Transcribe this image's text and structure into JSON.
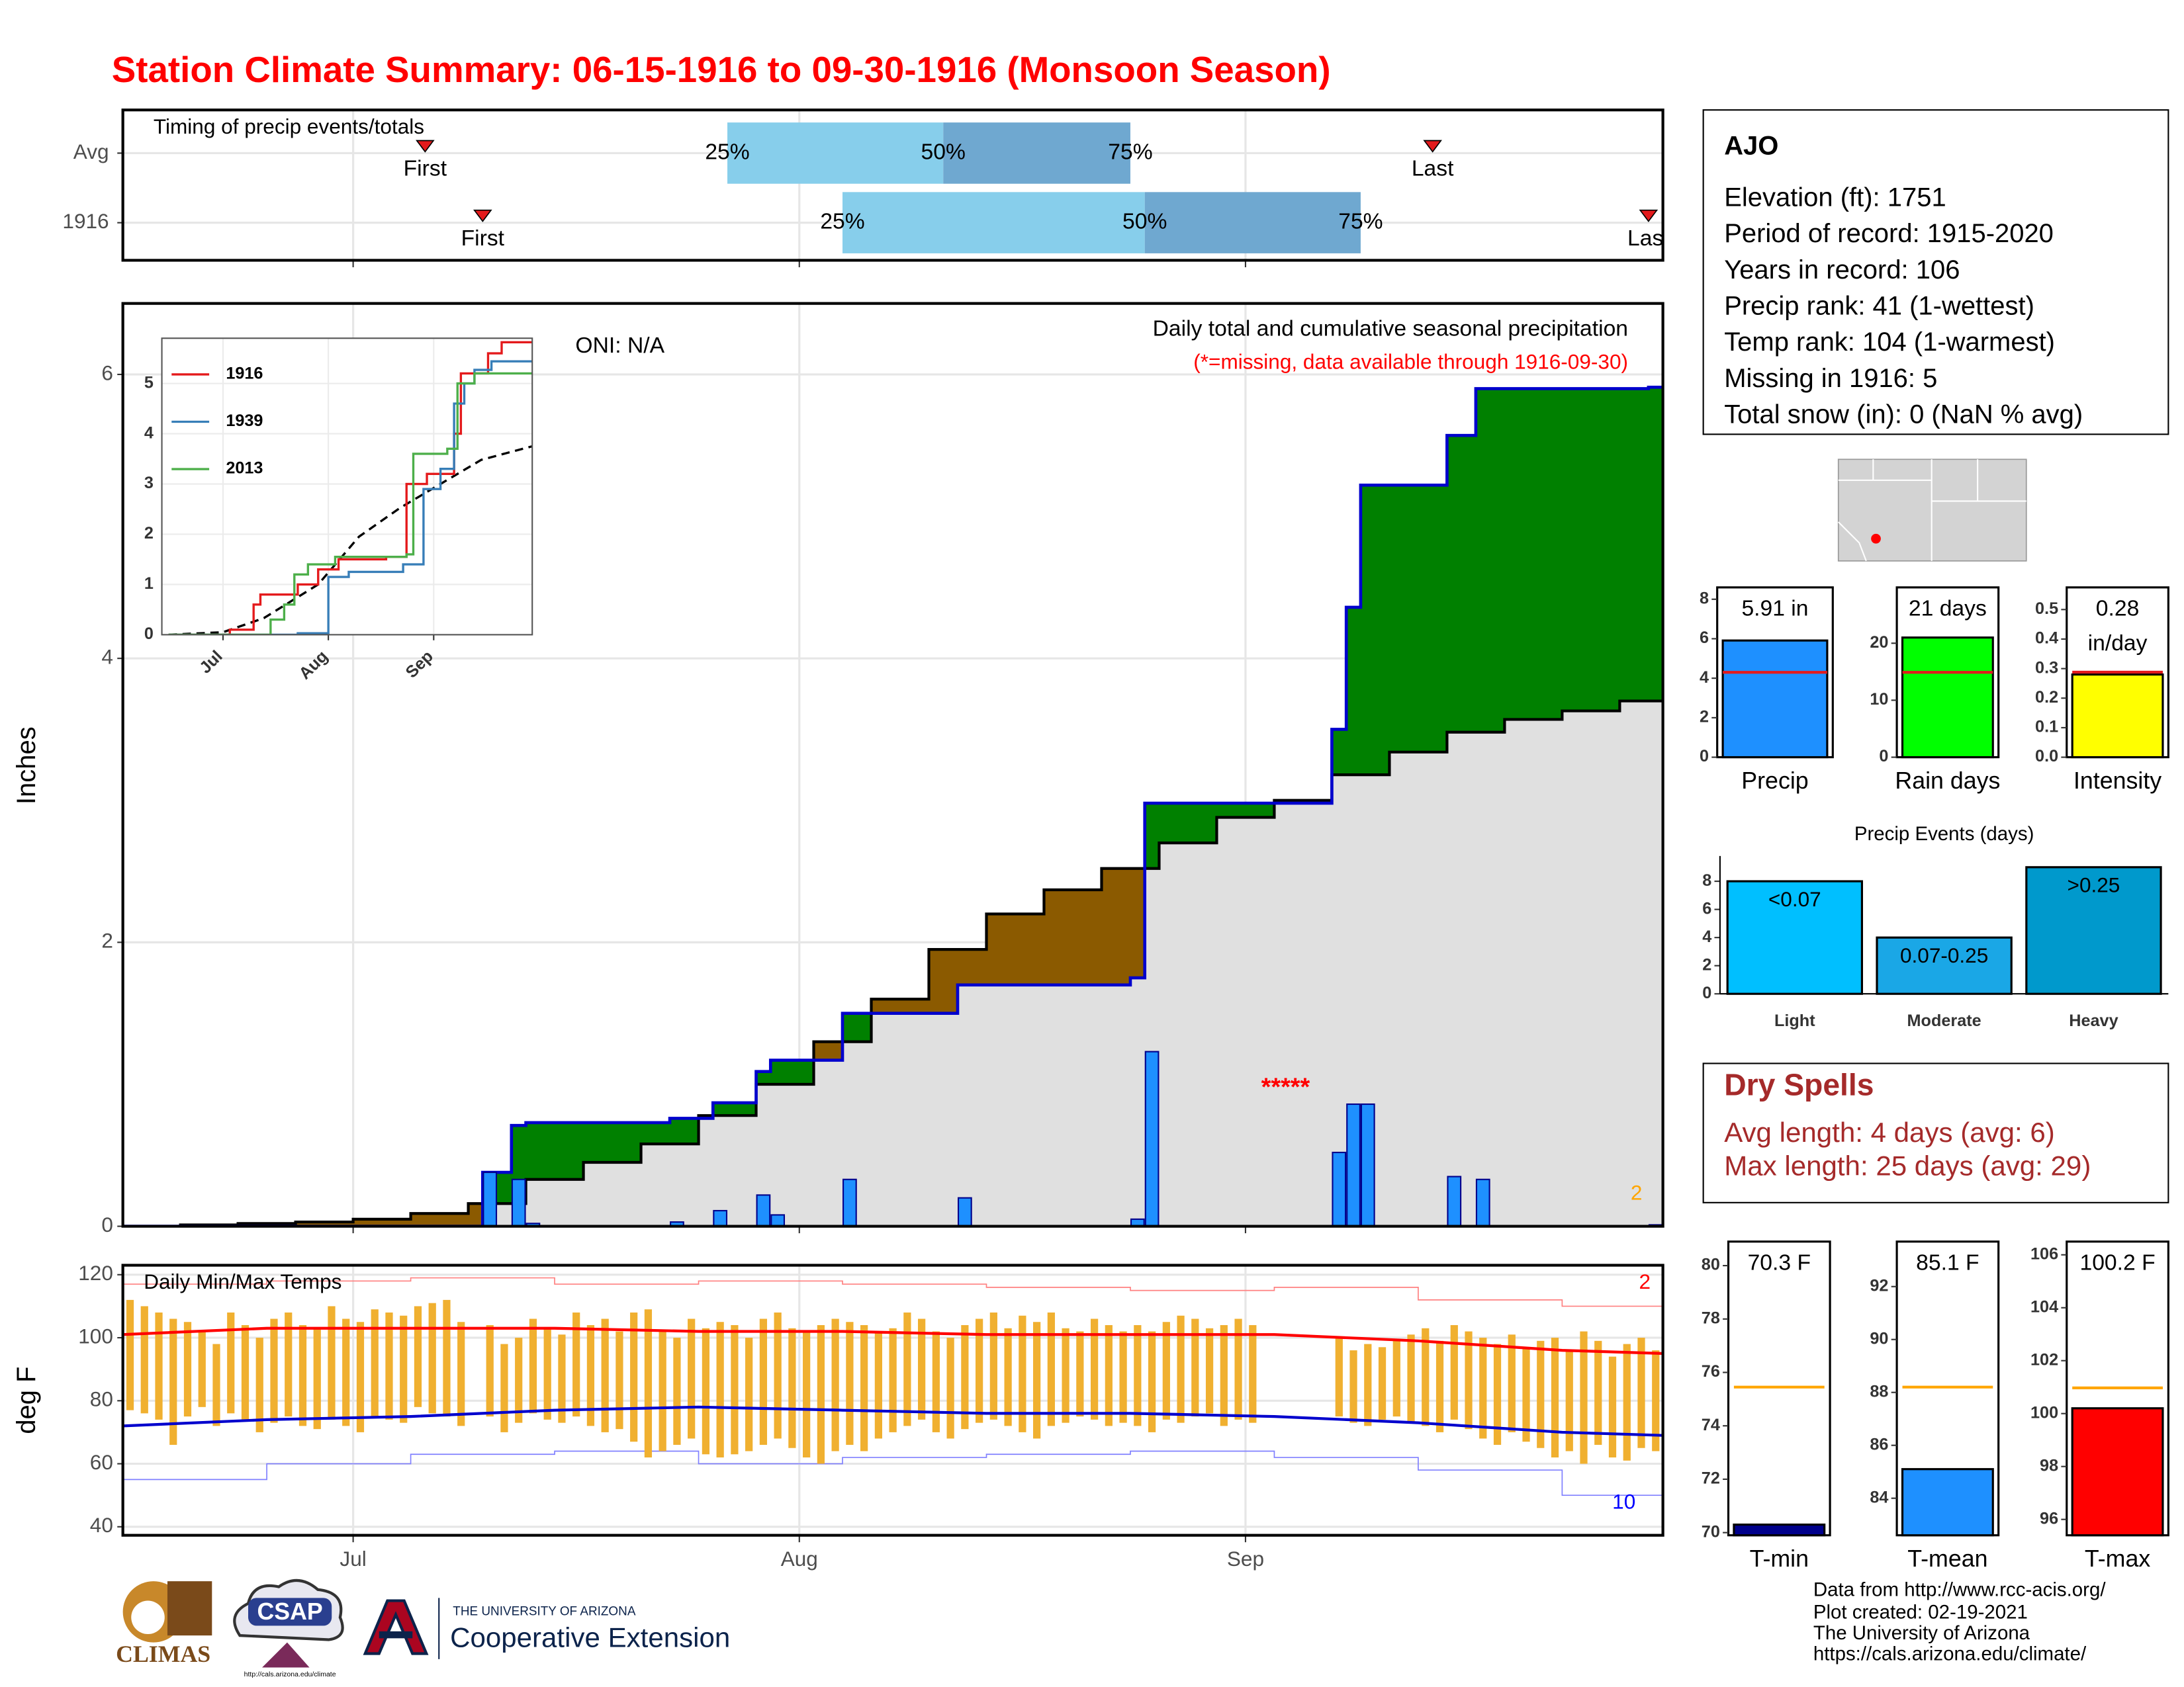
{
  "title": "Station Climate Summary: 06-15-1916 to 09-30-1916 (Monsoon Season)",
  "chart_data": [
    {
      "type": "timing",
      "title": "Timing of precip events/totals",
      "categories": [
        "Avg",
        "1916"
      ],
      "xlim": [
        0,
        107
      ],
      "rows": [
        {
          "first": 21,
          "q25": 42,
          "q50": 57,
          "q75": 70,
          "last": 91
        },
        {
          "first": 25,
          "q25": 50,
          "q50": 71,
          "q75": 86,
          "last": 106
        }
      ],
      "labels": {
        "first": "First",
        "last": "Last",
        "q25": "25%",
        "q50": "50%",
        "q75": "75%"
      },
      "colors": [
        "#87ceeb",
        "#6fa8d0"
      ],
      "marker_color": "#e31a1c"
    },
    {
      "type": "cumulative_precip",
      "title": "Daily total and cumulative seasonal precipitation",
      "subtitle": "(*=missing, data available through 1916-09-30)",
      "annotation": "ONI: N/A",
      "missing_label": "*****",
      "note": "2",
      "note_color": "#ffa500",
      "ylabel": "Inches",
      "xlim": [
        0,
        107
      ],
      "ylim": [
        0,
        6.5
      ],
      "yticks": [
        0,
        2,
        4,
        6
      ],
      "grid": true,
      "above_color": "#008000",
      "below_color": "#8b5a00",
      "base_color": "#e0e0e0",
      "series": [
        {
          "name": "1916",
          "color": "#1e90ff",
          "line_color": "#0000cd",
          "x": [
            25,
            27,
            28,
            38,
            41,
            44,
            45,
            50,
            58,
            70,
            71,
            84,
            85,
            86,
            92,
            94,
            106
          ],
          "values": [
            0.38,
            0.33,
            0.02,
            0.03,
            0.11,
            0.22,
            0.08,
            0.33,
            0.2,
            0.05,
            1.23,
            0.52,
            0.86,
            0.86,
            0.35,
            0.33,
            0.01
          ]
        },
        {
          "color": "#000000",
          "x": [
            0,
            4,
            8,
            12,
            16,
            20,
            24,
            28,
            32,
            36,
            40,
            44,
            48,
            52,
            56,
            60,
            64,
            68,
            72,
            76,
            80,
            84,
            88,
            92,
            96,
            100,
            104,
            107
          ],
          "values": [
            0,
            0.01,
            0.02,
            0.03,
            0.05,
            0.09,
            0.16,
            0.33,
            0.45,
            0.58,
            0.78,
            1.0,
            1.3,
            1.6,
            1.95,
            2.2,
            2.37,
            2.52,
            2.7,
            2.88,
            3.0,
            3.18,
            3.34,
            3.48,
            3.57,
            3.63,
            3.7,
            3.75
          ]
        }
      ]
    },
    {
      "type": "inset_cumulative",
      "xlim": [
        -2,
        107
      ],
      "ylim": [
        0,
        5.9
      ],
      "yticks": [
        0,
        1,
        2,
        3,
        4,
        5
      ],
      "series": [
        {
          "name": "1916",
          "color": "#e41a1c",
          "x": [
            0,
            18,
            25,
            27,
            38,
            44,
            50,
            64,
            70,
            76,
            84,
            86,
            94,
            98,
            107
          ],
          "values": [
            0,
            0.1,
            0.6,
            0.8,
            1.0,
            1.3,
            1.5,
            1.55,
            3.0,
            3.2,
            4.0,
            5.2,
            5.6,
            5.82,
            5.82
          ]
        },
        {
          "name": "1939",
          "color": "#377eb8",
          "x": [
            0,
            38,
            47,
            53,
            69,
            75,
            80,
            84,
            87,
            90,
            95,
            107
          ],
          "values": [
            0,
            0.03,
            1.15,
            1.25,
            1.4,
            2.9,
            3.3,
            4.6,
            5.0,
            5.27,
            5.44,
            5.44
          ]
        },
        {
          "name": "2013",
          "color": "#4daf4a",
          "x": [
            0,
            30,
            34,
            37,
            41,
            49,
            70,
            72,
            82,
            85,
            90,
            107
          ],
          "values": [
            0,
            0.3,
            0.6,
            1.2,
            1.4,
            1.55,
            1.6,
            3.6,
            3.7,
            5.0,
            5.2,
            5.2
          ]
        }
      ],
      "average": {
        "color": "#000000",
        "x": [
          0,
          16,
          28,
          44,
          56,
          68,
          80,
          92,
          107
        ],
        "values": [
          0,
          0.05,
          0.33,
          1.0,
          1.95,
          2.52,
          3.0,
          3.48,
          3.75
        ]
      }
    },
    {
      "type": "temperature",
      "title": "Daily Min/Max Temps",
      "ylabel": "deg F",
      "xlim": [
        0,
        107
      ],
      "xticks": [
        {
          "value": 16,
          "label": "Jul"
        },
        {
          "value": 47,
          "label": "Aug"
        },
        {
          "value": 78,
          "label": "Sep"
        }
      ],
      "ylim": [
        37.3,
        123
      ],
      "yticks": [
        40,
        60,
        80,
        100,
        120
      ],
      "grid": true,
      "bar_color": "#f0b030",
      "tmax": [
        112,
        110,
        108,
        106,
        105,
        102,
        98,
        108,
        104,
        100,
        106,
        108,
        104,
        103,
        110,
        106,
        105,
        109,
        108,
        107,
        110,
        111,
        112,
        105,
        null,
        104,
        98,
        100,
        106,
        103,
        101,
        108,
        104,
        106,
        102,
        108,
        109,
        102,
        100,
        106,
        103,
        105,
        104,
        100,
        106,
        108,
        103,
        102,
        104,
        106,
        105,
        104,
        102,
        103,
        108,
        106,
        102,
        100,
        104,
        106,
        108,
        103,
        107,
        105,
        108,
        103,
        102,
        106,
        104,
        102,
        104,
        102,
        105,
        107,
        106,
        103,
        104,
        106,
        104,
        null,
        null,
        null,
        null,
        null,
        100,
        96,
        98,
        97,
        99,
        101,
        103,
        99,
        104,
        102,
        100,
        98,
        101,
        97,
        99,
        100,
        96,
        102,
        99,
        94,
        98,
        100,
        96
      ],
      "tmin": [
        77,
        76,
        74,
        66,
        75,
        78,
        72,
        76,
        74,
        70,
        73,
        75,
        72,
        71,
        74,
        72,
        70,
        75,
        74,
        73,
        78,
        76,
        75,
        72,
        null,
        75,
        70,
        73,
        76,
        74,
        73,
        75,
        72,
        70,
        71,
        67,
        62,
        64,
        66,
        68,
        63,
        62,
        63,
        64,
        66,
        68,
        65,
        62,
        60,
        64,
        66,
        64,
        68,
        70,
        72,
        74,
        70,
        68,
        71,
        73,
        74,
        72,
        70,
        68,
        72,
        73,
        75,
        74,
        72,
        73,
        72,
        70,
        74,
        73,
        75,
        76,
        72,
        74,
        73,
        null,
        null,
        null,
        null,
        null,
        75,
        73,
        72,
        74,
        75,
        73,
        72,
        70,
        74,
        71,
        68,
        66,
        70,
        67,
        65,
        62,
        64,
        60,
        66,
        62,
        61,
        65,
        64
      ],
      "avg_max": {
        "color": "#ff0000",
        "x": [
          0,
          10,
          20,
          30,
          40,
          50,
          60,
          70,
          80,
          90,
          100,
          107
        ],
        "values": [
          101,
          103,
          103,
          103,
          102,
          102,
          101,
          101,
          101,
          99,
          96,
          95
        ]
      },
      "avg_min": {
        "color": "#0000cd",
        "x": [
          0,
          10,
          20,
          30,
          40,
          50,
          60,
          70,
          80,
          90,
          100,
          107
        ],
        "values": [
          72,
          74,
          75,
          77,
          78,
          77,
          76,
          76,
          75,
          73,
          70,
          69
        ]
      },
      "record_max": {
        "color": "#ff8080",
        "x": [
          0,
          10,
          20,
          30,
          40,
          50,
          60,
          70,
          80,
          90,
          100,
          107
        ],
        "values": [
          117,
          118,
          119,
          117,
          118,
          117,
          116,
          115,
          116,
          112,
          110,
          108
        ]
      },
      "record_min": {
        "color": "#8080ff",
        "x": [
          0,
          10,
          20,
          30,
          40,
          50,
          60,
          70,
          80,
          90,
          100,
          107
        ],
        "values": [
          55,
          60,
          63,
          64,
          60,
          62,
          63,
          64,
          62,
          58,
          50,
          52
        ]
      },
      "annotations": [
        {
          "text": "2",
          "color": "#ff0000"
        },
        {
          "text": "10",
          "color": "#0000ff"
        }
      ]
    },
    {
      "type": "summary_bar",
      "category": "Precip",
      "value": 5.91,
      "value_label": [
        "5.91 in"
      ],
      "average": 4.3,
      "color": "#1e90ff",
      "avg_color": "#e31a1c",
      "ylim": [
        0,
        8.6
      ],
      "yticks": [
        0,
        2,
        4,
        6,
        8
      ]
    },
    {
      "type": "summary_bar",
      "category": "Rain days",
      "value": 21,
      "value_label": [
        "21 days"
      ],
      "average": 14.9,
      "color": "#00ff00",
      "avg_color": "#e31a1c",
      "ylim": [
        0,
        29.8
      ],
      "yticks": [
        0,
        10,
        20
      ]
    },
    {
      "type": "summary_bar",
      "category": "Intensity",
      "value": 0.28,
      "value_label": [
        "0.28",
        "in/day"
      ],
      "average": 0.288,
      "color": "#ffff00",
      "avg_color": "#e31a1c",
      "ylim": [
        0,
        0.575
      ],
      "yticks": [
        {
          "value": 0,
          "label": "0.0"
        },
        0.1,
        0.2,
        0.3,
        0.4,
        0.5
      ]
    },
    {
      "type": "events_bar",
      "title": "Precip Events (days)",
      "categories": [
        "Light",
        "Moderate",
        "Heavy"
      ],
      "values": [
        8,
        4,
        9
      ],
      "thresholds": [
        "<0.07",
        "0.07-0.25",
        ">0.25"
      ],
      "colors": [
        "#00bfff",
        "#1aa7e6",
        "#0099cc"
      ],
      "ylim": [
        0,
        9.2
      ],
      "yticks": [
        0,
        2,
        4,
        6,
        8
      ]
    },
    {
      "type": "summary_bar",
      "category": "T-min",
      "value": 70.3,
      "value_label": [
        "70.3 F"
      ],
      "average": 75.45,
      "color": "#00008b",
      "avg_color": "#ffa500",
      "ylim": [
        69.9,
        80.9
      ],
      "yticks": [
        70,
        72,
        74,
        76,
        78,
        80
      ]
    },
    {
      "type": "summary_bar",
      "category": "T-mean",
      "value": 85.1,
      "value_label": [
        "85.1 F"
      ],
      "average": 88.2,
      "color": "#1e90ff",
      "avg_color": "#ffa500",
      "ylim": [
        82.6,
        93.7
      ],
      "yticks": [
        84,
        86,
        88,
        90,
        92
      ]
    },
    {
      "type": "summary_bar",
      "category": "T-max",
      "value": 100.2,
      "value_label": [
        "100.2 F"
      ],
      "average": 100.97,
      "color": "#ff0000",
      "avg_color": "#ffa500",
      "ylim": [
        95.4,
        106.5
      ],
      "yticks": [
        96,
        98,
        100,
        102,
        104,
        106
      ]
    }
  ],
  "station": {
    "name": "AJO",
    "lines": [
      "Elevation (ft): 1751",
      "Period of record: 1915-2020",
      "Years in record: 106",
      "Precip rank: 41 (1-wettest)",
      "Temp rank: 104 (1-warmest)",
      "Missing in 1916: 5",
      "Total snow (in): 0 (NaN % avg)"
    ]
  },
  "dry_spells": {
    "title": "Dry Spells",
    "lines": [
      "Avg length: 4 days (avg: 6)",
      "Max length: 25 days (avg: 29)"
    ]
  },
  "footer": {
    "credits": [
      "Data from http://www.rcc-acis.org/",
      "Plot created: 02-19-2021",
      "The University of Arizona",
      "https://cals.arizona.edu/climate/"
    ],
    "logos": {
      "climas": "CLIMAS",
      "csap": "CSAP",
      "csap_url": "http://cals.arizona.edu/climate",
      "ua_small": "THE UNIVERSITY OF ARIZONA",
      "ua_large": "Cooperative Extension"
    }
  }
}
